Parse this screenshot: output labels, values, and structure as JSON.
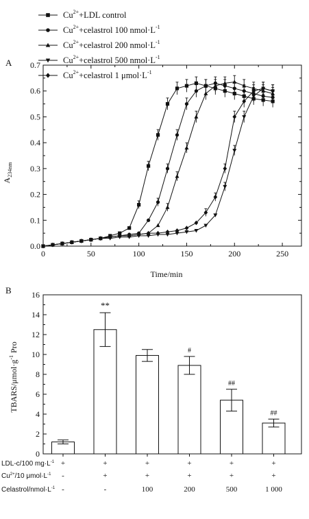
{
  "chart_data": [
    {
      "type": "line",
      "panel_label": "A",
      "xlabel": "Time/min",
      "ylabel_main": "A",
      "ylabel_sub": "234nm",
      "xlim": [
        0,
        270
      ],
      "ylim": [
        0,
        0.7
      ],
      "xticks": [
        "0",
        "50",
        "100",
        "150",
        "200",
        "250"
      ],
      "yticks": [
        "0.0",
        "0.1",
        "0.2",
        "0.3",
        "0.4",
        "0.5",
        "0.6",
        "0.7"
      ],
      "legend_position": "top-left",
      "x": [
        0,
        10,
        20,
        30,
        40,
        50,
        60,
        70,
        80,
        90,
        100,
        110,
        120,
        130,
        140,
        150,
        160,
        170,
        180,
        190,
        200,
        210,
        220,
        230,
        240
      ],
      "series": [
        {
          "prefix": "Cu",
          "sup": "2+",
          "rest": "+LDL control",
          "marker": "square",
          "values": [
            0.0,
            0.005,
            0.01,
            0.015,
            0.02,
            0.025,
            0.03,
            0.04,
            0.05,
            0.07,
            0.16,
            0.31,
            0.43,
            0.55,
            0.61,
            0.62,
            0.63,
            0.62,
            0.61,
            0.6,
            0.59,
            0.58,
            0.57,
            0.565,
            0.56
          ]
        },
        {
          "prefix": "Cu",
          "sup": "2+",
          "rest": "+celastrol 100 nmol·L",
          "unit_sup": "-1",
          "marker": "circle",
          "values": [
            0.0,
            0.005,
            0.01,
            0.015,
            0.02,
            0.025,
            0.03,
            0.035,
            0.04,
            0.045,
            0.05,
            0.1,
            0.17,
            0.3,
            0.43,
            0.55,
            0.6,
            0.62,
            0.63,
            0.62,
            0.61,
            0.6,
            0.59,
            0.58,
            0.575
          ]
        },
        {
          "prefix": "Cu",
          "sup": "2+",
          "rest": "+celastrol 200 nmol·L",
          "unit_sup": "-1",
          "marker": "triangle-up",
          "values": [
            0.0,
            0.005,
            0.01,
            0.015,
            0.02,
            0.025,
            0.03,
            0.035,
            0.04,
            0.04,
            0.045,
            0.05,
            0.08,
            0.15,
            0.27,
            0.38,
            0.5,
            0.59,
            0.62,
            0.63,
            0.635,
            0.62,
            0.61,
            0.6,
            0.59
          ]
        },
        {
          "prefix": "Cu",
          "sup": "2+",
          "rest": "+celastrol 500 nmol·L",
          "unit_sup": "-1",
          "marker": "triangle-down",
          "values": [
            0.0,
            0.005,
            0.01,
            0.015,
            0.02,
            0.025,
            0.03,
            0.03,
            0.035,
            0.035,
            0.04,
            0.04,
            0.045,
            0.045,
            0.05,
            0.055,
            0.06,
            0.08,
            0.12,
            0.23,
            0.37,
            0.5,
            0.58,
            0.61,
            0.6
          ]
        },
        {
          "prefix": "Cu",
          "sup": "2+",
          "rest": "+celastrol 1 μmol·L",
          "unit_sup": "-1",
          "marker": "diamond",
          "values": [
            0.0,
            0.005,
            0.01,
            0.015,
            0.02,
            0.025,
            0.03,
            0.035,
            0.04,
            0.04,
            0.045,
            0.05,
            0.05,
            0.055,
            0.06,
            0.07,
            0.09,
            0.13,
            0.19,
            0.3,
            0.5,
            0.56,
            0.6,
            0.61,
            0.6
          ]
        }
      ]
    },
    {
      "type": "bar",
      "panel_label": "B",
      "ylabel_main": "TBARS/μmol·g",
      "ylabel_sup": "-1",
      "ylabel_rest": " Pro",
      "ylim": [
        0,
        16
      ],
      "yticks": [
        "0",
        "2",
        "4",
        "6",
        "8",
        "10",
        "12",
        "14",
        "16"
      ],
      "values": [
        1.2,
        12.5,
        9.9,
        8.9,
        5.4,
        3.1
      ],
      "errors": [
        0.2,
        1.7,
        0.6,
        0.9,
        1.1,
        0.4
      ],
      "significance": [
        "",
        "**",
        "",
        "#",
        "##",
        "##"
      ],
      "condition_rows": [
        {
          "label_main": "LDL-c/100 mg·L",
          "label_sup": "-1",
          "cells": [
            "+",
            "+",
            "+",
            "+",
            "+",
            "+"
          ]
        },
        {
          "label_pre": "Cu",
          "label_pre_sup": "2+",
          "label_main": "/10 μmol·L",
          "label_sup": "-1",
          "cells": [
            "-",
            "+",
            "+",
            "+",
            "+",
            "+"
          ]
        },
        {
          "label_main": "Celastrol/nmol·L",
          "label_sup": "-1",
          "cells": [
            "-",
            "-",
            "100",
            "200",
            "500",
            "1 000"
          ]
        }
      ]
    }
  ]
}
